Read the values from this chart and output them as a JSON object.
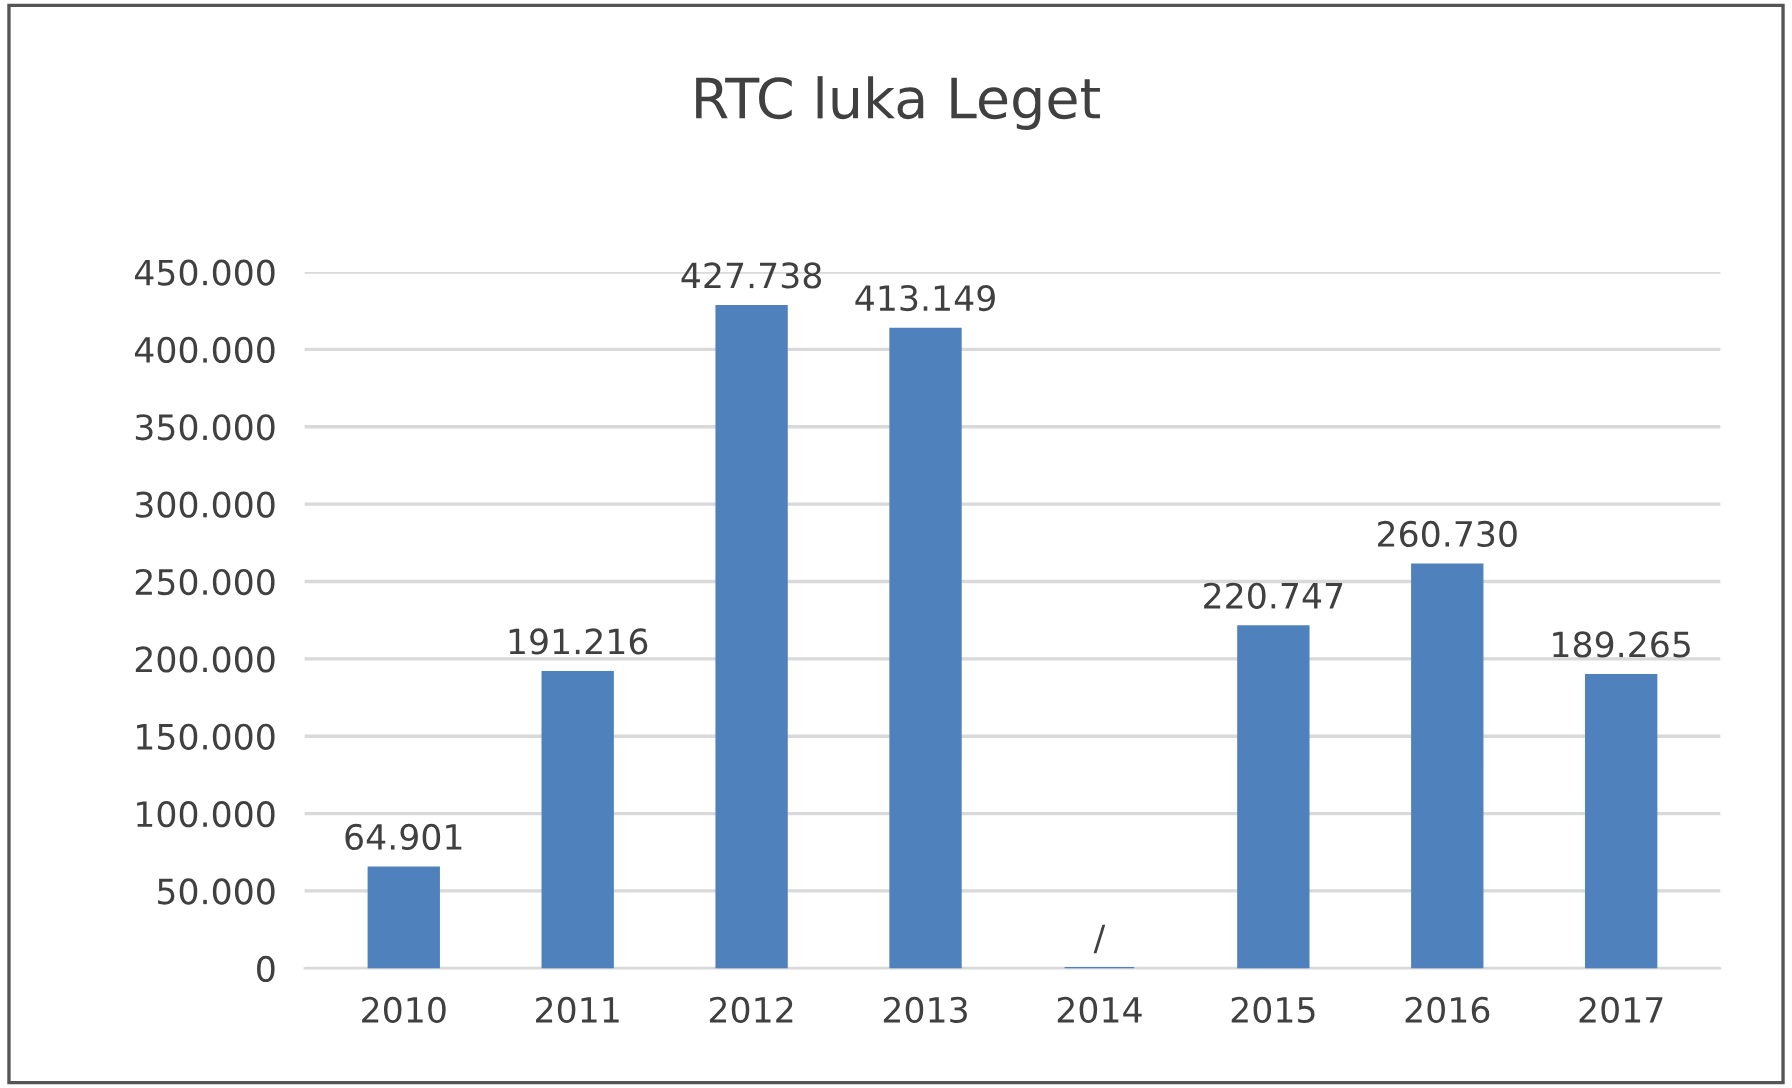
{
  "chart_data": {
    "type": "bar",
    "title": "RTC luka Leget",
    "categories": [
      "2010",
      "2011",
      "2012",
      "2013",
      "2014",
      "2015",
      "2016",
      "2017"
    ],
    "values": [
      64901,
      191216,
      427738,
      413149,
      0,
      220747,
      260730,
      189265
    ],
    "value_labels": [
      "64.901",
      "191.216",
      "427.738",
      "413.149",
      "/",
      "220.747",
      "260.730",
      "189.265"
    ],
    "color": "#4f81bd",
    "ylim": [
      0,
      450000
    ],
    "yticks": [
      {
        "value": 0,
        "label": "0"
      },
      {
        "value": 50000,
        "label": "50.000"
      },
      {
        "value": 100000,
        "label": "100.000"
      },
      {
        "value": 150000,
        "label": "150.000"
      },
      {
        "value": 200000,
        "label": "200.000"
      },
      {
        "value": 250000,
        "label": "250.000"
      },
      {
        "value": 300000,
        "label": "300.000"
      },
      {
        "value": 350000,
        "label": "350.000"
      },
      {
        "value": 400000,
        "label": "400.000"
      },
      {
        "value": 450000,
        "label": "450.000"
      }
    ],
    "grid": "y",
    "legend": false
  }
}
